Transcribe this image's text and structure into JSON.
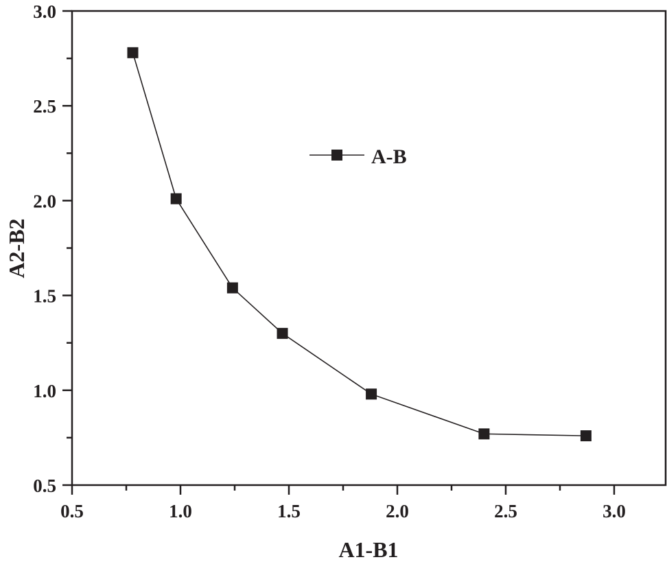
{
  "chart_data": {
    "type": "line",
    "title": "",
    "xlabel": "A1-B1",
    "ylabel": "A2-B2",
    "xlim": [
      0.5,
      3.25
    ],
    "ylim": [
      0.5,
      3.0
    ],
    "xticks": [
      0.5,
      1.0,
      1.5,
      2.0,
      2.5,
      3.0
    ],
    "xtick_labels": [
      "0.5",
      "1.0",
      "1.5",
      "2.0",
      "2.5",
      "3.0"
    ],
    "yticks": [
      0.5,
      1.0,
      1.5,
      2.0,
      2.5,
      3.0
    ],
    "ytick_labels": [
      "0.5",
      "1.0",
      "1.5",
      "2.0",
      "2.5",
      "3.0"
    ],
    "grid": false,
    "legend_position": "upper-center",
    "series": [
      {
        "name": "A-B",
        "marker": "square",
        "color": "#231f20",
        "x": [
          0.78,
          0.98,
          1.24,
          1.47,
          1.88,
          2.4,
          2.87
        ],
        "y": [
          2.78,
          2.01,
          1.54,
          1.3,
          0.98,
          0.77,
          0.76
        ]
      }
    ]
  }
}
